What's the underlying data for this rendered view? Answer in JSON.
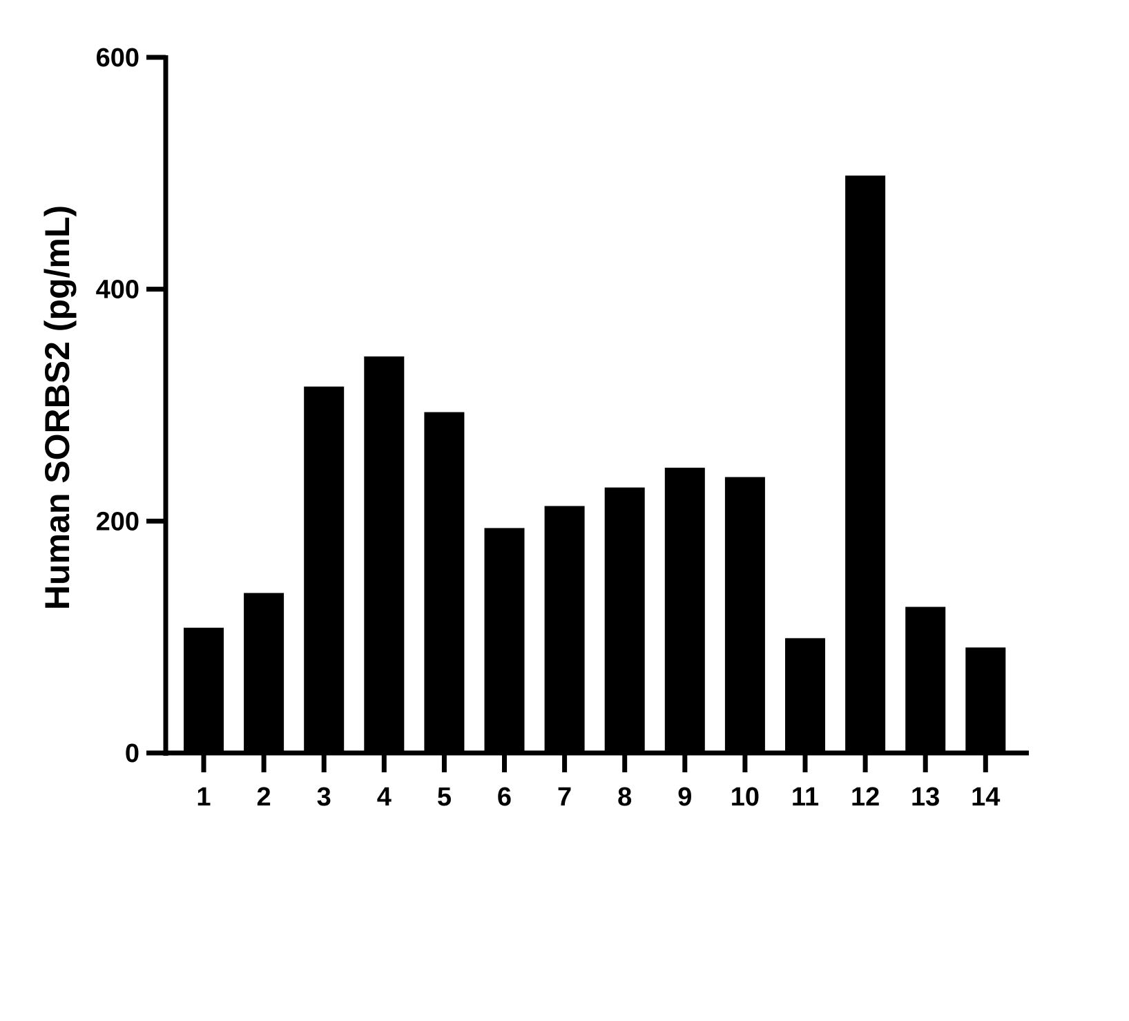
{
  "chart_data": {
    "type": "bar",
    "title": "",
    "xlabel": "",
    "ylabel": "Human SORBS2 (pg/mL)",
    "categories": [
      "1",
      "2",
      "3",
      "4",
      "5",
      "6",
      "7",
      "8",
      "9",
      "10",
      "11",
      "12",
      "13",
      "14"
    ],
    "values": [
      108,
      138,
      316,
      342,
      294,
      194,
      213,
      229,
      246,
      238,
      99,
      498,
      126,
      91
    ],
    "ylim": [
      0,
      600
    ],
    "yticks": [
      "0",
      "200",
      "400",
      "600"
    ],
    "grid": false,
    "legend": "none",
    "bar_color": "#000000"
  }
}
